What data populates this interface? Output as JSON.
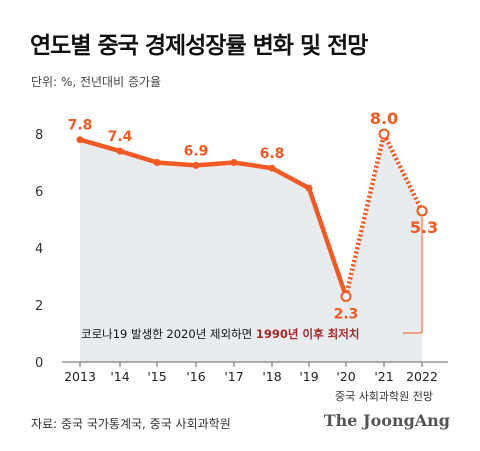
{
  "title": "연도별 중국 경제성장률 변화 및 전망",
  "unit_label": "단위: %, 전년대비 증가율",
  "source": "자료: 중국 국가통계국, 중국 사회과학원",
  "brand": "The JoongAng",
  "colors": {
    "line": "#f05a24",
    "area": "#e9ecef",
    "highlight": "#a52a2a",
    "axis": "#666666"
  },
  "chart_data": {
    "type": "line",
    "categories": [
      "2013",
      "'14",
      "'15",
      "'16",
      "'17",
      "'18",
      "'19",
      "'20",
      "'21",
      "2022"
    ],
    "values": [
      7.8,
      7.4,
      7.0,
      6.9,
      7.0,
      6.8,
      6.1,
      2.3,
      8.0,
      5.3
    ],
    "data_labels": [
      {
        "index": 0,
        "text": "7.8"
      },
      {
        "index": 1,
        "text": "7.4"
      },
      {
        "index": 3,
        "text": "6.9"
      },
      {
        "index": 5,
        "text": "6.8"
      },
      {
        "index": 7,
        "text": "2.3"
      },
      {
        "index": 8,
        "text": "8.0"
      },
      {
        "index": 9,
        "text": "5.3"
      }
    ],
    "y_ticks": [
      "0",
      "2",
      "4",
      "6",
      "8"
    ],
    "ylim": [
      0,
      8.6
    ],
    "grid": false,
    "forecast_from_index": 7,
    "forecast_label": "중국 사회과학원 전망",
    "annotation": {
      "prefix": "코로나19 발생한 2020년 제외하면 ",
      "highlight": "1990년 이후 최저치"
    }
  }
}
